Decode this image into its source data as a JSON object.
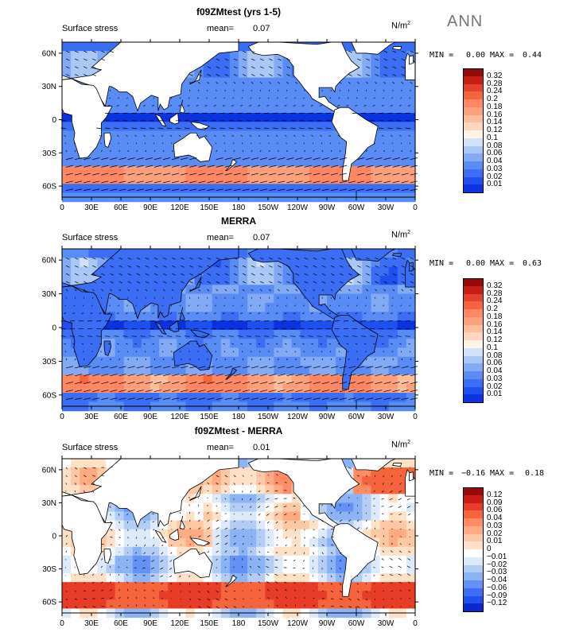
{
  "season_label": "ANN",
  "lon_ticks": [
    "0",
    "30E",
    "60E",
    "90E",
    "120E",
    "150E",
    "180",
    "150W",
    "120W",
    "90W",
    "60W",
    "30W",
    "0"
  ],
  "lat_ticks": [
    "60N",
    "30N",
    "0",
    "30S",
    "60S"
  ],
  "palette_main": [
    "#00007f",
    "#0014c8",
    "#0a32e0",
    "#1e50f0",
    "#3c6ef5",
    "#5a8cf5",
    "#82aaf5",
    "#aac8f5",
    "#d2e1fa",
    "#fff5e6",
    "#ffd7be",
    "#ffbe9b",
    "#ffa07d",
    "#ff8764",
    "#f5643c",
    "#e6412d",
    "#c81e14",
    "#960a0a"
  ],
  "palette_diff": [
    "#00007f",
    "#0a28d2",
    "#1e50f0",
    "#3c6ef5",
    "#6491f5",
    "#8cb4f5",
    "#b4cdf5",
    "#dceafa",
    "#ffffff",
    "#ffe1c8",
    "#ffc8a5",
    "#ffaa82",
    "#ff8c64",
    "#f5643c",
    "#e63c28",
    "#c81e14",
    "#960a0a"
  ],
  "panels": [
    {
      "title": "f09ZMtest (yrs 1-5)",
      "left_label": "Surface stress",
      "mean_label": "mean=",
      "mean_value": "0.07",
      "units": "N/m",
      "units_sup": "2",
      "min_label": "MIN =",
      "min_value": "0.00",
      "max_label": "MAX =",
      "max_value": "0.44",
      "levels": [
        "0.32",
        "0.28",
        "0.24",
        "0.2",
        "0.18",
        "0.16",
        "0.14",
        "0.12",
        "0.1",
        "0.08",
        "0.06",
        "0.04",
        "0.03",
        "0.02",
        "0.01"
      ]
    },
    {
      "title": "MERRA",
      "left_label": "Surface stress",
      "mean_label": "mean=",
      "mean_value": "0.07",
      "units": "N/m",
      "units_sup": "2",
      "min_label": "MIN =",
      "min_value": "0.00",
      "max_label": "MAX =",
      "max_value": "0.63",
      "levels": [
        "0.32",
        "0.28",
        "0.24",
        "0.2",
        "0.18",
        "0.16",
        "0.14",
        "0.12",
        "0.1",
        "0.08",
        "0.06",
        "0.04",
        "0.03",
        "0.02",
        "0.01"
      ]
    },
    {
      "title": "f09ZMtest - MERRA",
      "left_label": "Surface stress",
      "mean_label": "mean=",
      "mean_value": "0.01",
      "units": "N/m",
      "units_sup": "2",
      "min_label": "MIN =",
      "min_value": "−0.16",
      "max_label": "MAX =",
      "max_value": "0.18",
      "levels": [
        "0.12",
        "0.09",
        "0.06",
        "0.04",
        "0.03",
        "0.02",
        "0.01",
        "0",
        "−0.01",
        "−0.02",
        "−0.03",
        "−0.04",
        "−0.06",
        "−0.09",
        "−0.12"
      ]
    }
  ]
}
